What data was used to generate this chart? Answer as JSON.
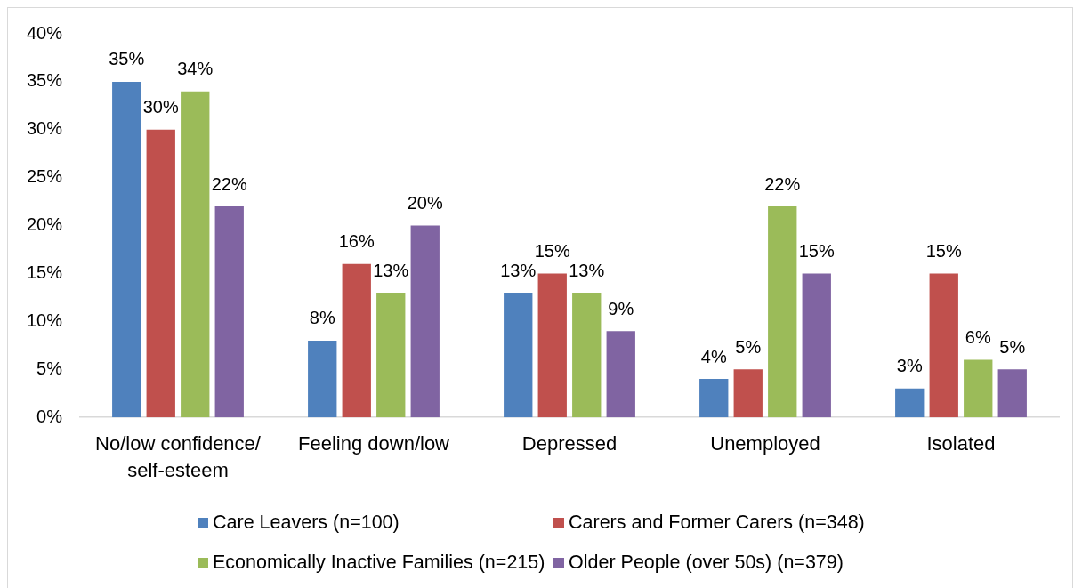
{
  "chart_data": {
    "type": "bar",
    "categories": [
      "No/low confidence/ self-esteem",
      "Feeling down/low",
      "Depressed",
      "Unemployed",
      "Isolated"
    ],
    "series": [
      {
        "name": "Care Leavers (n=100)",
        "color": "#4f81bd",
        "values": [
          35,
          8,
          13,
          4,
          3
        ],
        "value_labels": [
          "35%",
          "8%",
          "13%",
          "4%",
          "3%"
        ]
      },
      {
        "name": "Carers and Former Carers (n=348)",
        "color": "#c0504d",
        "values": [
          30,
          16,
          15,
          5,
          15
        ],
        "value_labels": [
          "30%",
          "16%",
          "15%",
          "5%",
          "15%"
        ]
      },
      {
        "name": "Economically Inactive Families (n=215)",
        "color": "#9bbb59",
        "values": [
          34,
          13,
          13,
          22,
          6
        ],
        "value_labels": [
          "34%",
          "13%",
          "13%",
          "22%",
          "6%"
        ]
      },
      {
        "name": "Older People (over 50s) (n=379)",
        "color": "#8064a2",
        "values": [
          22,
          20,
          9,
          15,
          5
        ],
        "value_labels": [
          "22%",
          "20%",
          "9%",
          "15%",
          "5%"
        ]
      }
    ],
    "ylim": [
      0,
      40
    ],
    "yticks": [
      {
        "value": 0,
        "label": "0%"
      },
      {
        "value": 5,
        "label": "5%"
      },
      {
        "value": 10,
        "label": "10%"
      },
      {
        "value": 15,
        "label": "15%"
      },
      {
        "value": 20,
        "label": "20%"
      },
      {
        "value": 25,
        "label": "25%"
      },
      {
        "value": 30,
        "label": "30%"
      },
      {
        "value": 35,
        "label": "35%"
      },
      {
        "value": 40,
        "label": "40%"
      }
    ],
    "legend": "bottom"
  }
}
